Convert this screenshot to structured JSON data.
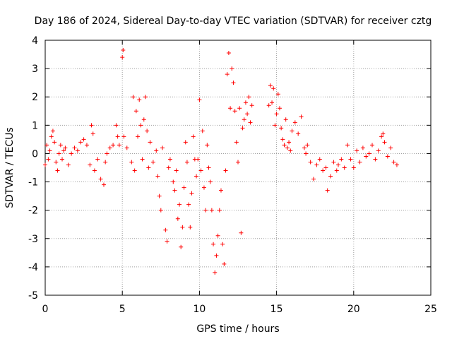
{
  "chart_data": {
    "type": "scatter",
    "title": "Day 186 of 2024, Sidereal Day-to-day VTEC variation (SDTVAR) for receiver cztg",
    "xlabel": "GPS time / hours",
    "ylabel": "SDTVAR / TECUs",
    "xlim": [
      0,
      25
    ],
    "ylim": [
      -5,
      4
    ],
    "xticks": [
      0,
      5,
      10,
      15,
      20,
      25
    ],
    "yticks": [
      -5,
      -4,
      -3,
      -2,
      -1,
      0,
      1,
      2,
      3,
      4
    ],
    "grid": true,
    "marker": "+",
    "color": "#ff0000",
    "series": [
      {
        "name": "SDTVAR",
        "points": [
          [
            0.0,
            -0.4
          ],
          [
            0.1,
            0.3
          ],
          [
            0.2,
            -0.2
          ],
          [
            0.3,
            0.1
          ],
          [
            0.4,
            0.6
          ],
          [
            0.5,
            0.8
          ],
          [
            0.6,
            0.4
          ],
          [
            0.7,
            -0.3
          ],
          [
            0.8,
            -0.6
          ],
          [
            0.9,
            0.0
          ],
          [
            1.0,
            0.3
          ],
          [
            1.1,
            -0.2
          ],
          [
            1.2,
            0.1
          ],
          [
            1.3,
            0.2
          ],
          [
            1.5,
            -0.4
          ],
          [
            1.7,
            0.0
          ],
          [
            1.9,
            0.2
          ],
          [
            2.1,
            0.1
          ],
          [
            2.3,
            0.4
          ],
          [
            2.5,
            0.5
          ],
          [
            2.7,
            0.3
          ],
          [
            2.9,
            -0.4
          ],
          [
            3.0,
            1.0
          ],
          [
            3.1,
            0.7
          ],
          [
            3.2,
            -0.6
          ],
          [
            3.4,
            -0.2
          ],
          [
            3.6,
            -0.9
          ],
          [
            3.8,
            -1.1
          ],
          [
            3.9,
            -0.3
          ],
          [
            4.0,
            0.0
          ],
          [
            4.2,
            0.2
          ],
          [
            4.4,
            0.3
          ],
          [
            4.6,
            1.0
          ],
          [
            4.7,
            0.6
          ],
          [
            4.8,
            0.3
          ],
          [
            5.0,
            3.4
          ],
          [
            5.05,
            3.65
          ],
          [
            5.1,
            0.6
          ],
          [
            5.3,
            0.2
          ],
          [
            5.6,
            -0.3
          ],
          [
            5.8,
            -0.6
          ],
          [
            5.7,
            2.0
          ],
          [
            5.9,
            1.5
          ],
          [
            6.0,
            0.6
          ],
          [
            6.1,
            1.9
          ],
          [
            6.2,
            1.0
          ],
          [
            6.3,
            -0.2
          ],
          [
            6.4,
            1.2
          ],
          [
            6.5,
            2.0
          ],
          [
            6.6,
            0.8
          ],
          [
            6.7,
            -0.5
          ],
          [
            6.8,
            0.4
          ],
          [
            7.0,
            -0.3
          ],
          [
            7.2,
            0.1
          ],
          [
            7.3,
            -0.8
          ],
          [
            7.4,
            -1.5
          ],
          [
            7.5,
            -2.0
          ],
          [
            7.6,
            0.2
          ],
          [
            7.8,
            -2.7
          ],
          [
            7.9,
            -3.1
          ],
          [
            8.0,
            -0.5
          ],
          [
            8.1,
            -0.2
          ],
          [
            8.3,
            -1.0
          ],
          [
            8.4,
            -1.3
          ],
          [
            8.5,
            -0.6
          ],
          [
            8.6,
            -2.3
          ],
          [
            8.7,
            -1.8
          ],
          [
            8.8,
            -3.3
          ],
          [
            8.9,
            -2.6
          ],
          [
            9.0,
            -1.2
          ],
          [
            9.1,
            0.4
          ],
          [
            9.2,
            -0.3
          ],
          [
            9.3,
            -1.8
          ],
          [
            9.4,
            -2.6
          ],
          [
            9.5,
            -1.4
          ],
          [
            9.6,
            0.6
          ],
          [
            9.7,
            -0.2
          ],
          [
            9.8,
            -0.8
          ],
          [
            9.9,
            -0.2
          ],
          [
            10.0,
            1.9
          ],
          [
            10.1,
            -0.6
          ],
          [
            10.2,
            0.8
          ],
          [
            10.3,
            -1.2
          ],
          [
            10.4,
            -2.0
          ],
          [
            10.5,
            0.3
          ],
          [
            10.6,
            -0.5
          ],
          [
            10.7,
            -1.0
          ],
          [
            10.8,
            -2.0
          ],
          [
            10.9,
            -3.2
          ],
          [
            11.0,
            -4.2
          ],
          [
            11.1,
            -3.6
          ],
          [
            11.2,
            -2.9
          ],
          [
            11.3,
            -2.0
          ],
          [
            11.4,
            -1.3
          ],
          [
            11.5,
            -3.2
          ],
          [
            11.6,
            -3.9
          ],
          [
            11.7,
            -0.6
          ],
          [
            11.8,
            2.8
          ],
          [
            11.9,
            3.55
          ],
          [
            12.0,
            1.6
          ],
          [
            12.1,
            3.0
          ],
          [
            12.2,
            2.5
          ],
          [
            12.3,
            1.5
          ],
          [
            12.4,
            0.4
          ],
          [
            12.5,
            -0.3
          ],
          [
            12.6,
            1.6
          ],
          [
            12.7,
            -2.8
          ],
          [
            12.8,
            0.9
          ],
          [
            12.9,
            1.2
          ],
          [
            13.0,
            1.8
          ],
          [
            13.1,
            1.4
          ],
          [
            13.2,
            2.0
          ],
          [
            13.3,
            1.1
          ],
          [
            13.4,
            1.7
          ],
          [
            14.5,
            1.7
          ],
          [
            14.6,
            2.4
          ],
          [
            14.7,
            1.8
          ],
          [
            14.8,
            2.3
          ],
          [
            14.9,
            1.0
          ],
          [
            15.0,
            1.4
          ],
          [
            15.1,
            2.1
          ],
          [
            15.2,
            1.6
          ],
          [
            15.3,
            0.9
          ],
          [
            15.4,
            0.5
          ],
          [
            15.5,
            0.3
          ],
          [
            15.6,
            1.2
          ],
          [
            15.7,
            0.2
          ],
          [
            15.8,
            0.4
          ],
          [
            15.9,
            0.1
          ],
          [
            16.0,
            0.8
          ],
          [
            16.2,
            1.1
          ],
          [
            16.4,
            0.7
          ],
          [
            16.6,
            1.3
          ],
          [
            16.8,
            0.2
          ],
          [
            16.9,
            0.0
          ],
          [
            17.0,
            0.3
          ],
          [
            17.2,
            -0.3
          ],
          [
            17.4,
            -0.9
          ],
          [
            17.6,
            -0.4
          ],
          [
            17.8,
            -0.2
          ],
          [
            18.0,
            -0.6
          ],
          [
            18.2,
            -0.5
          ],
          [
            18.3,
            -1.3
          ],
          [
            18.5,
            -0.8
          ],
          [
            18.7,
            -0.3
          ],
          [
            18.9,
            -0.6
          ],
          [
            19.0,
            -0.4
          ],
          [
            19.2,
            -0.2
          ],
          [
            19.4,
            -0.5
          ],
          [
            19.6,
            0.3
          ],
          [
            19.8,
            -0.2
          ],
          [
            20.0,
            -0.5
          ],
          [
            20.2,
            0.1
          ],
          [
            20.4,
            -0.3
          ],
          [
            20.6,
            0.2
          ],
          [
            20.8,
            -0.1
          ],
          [
            21.0,
            0.0
          ],
          [
            21.2,
            0.3
          ],
          [
            21.4,
            -0.2
          ],
          [
            21.6,
            0.1
          ],
          [
            21.8,
            0.6
          ],
          [
            21.9,
            0.7
          ],
          [
            22.0,
            0.4
          ],
          [
            22.2,
            -0.1
          ],
          [
            22.4,
            0.2
          ],
          [
            22.6,
            -0.3
          ],
          [
            22.8,
            -0.4
          ]
        ]
      }
    ]
  }
}
